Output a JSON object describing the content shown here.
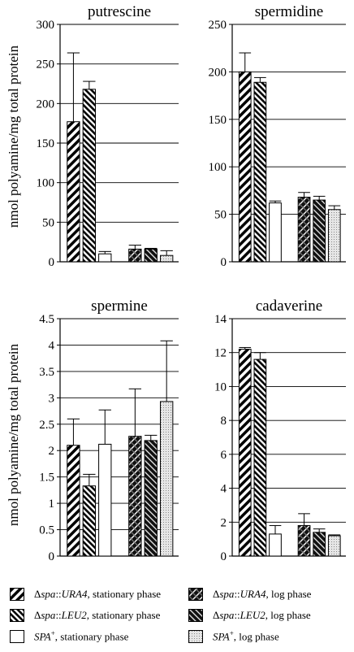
{
  "figure": {
    "ylabel": "nmol polyamine/mg total protein"
  },
  "legend": [
    {
      "prefix": "Δ",
      "italic": "spa",
      "mid": "::",
      "italic2": "URA4",
      "suffix": ", stationary phase",
      "pattern": "hatch-bold"
    },
    {
      "prefix": "Δ",
      "italic": "spa",
      "mid": "::",
      "italic2": "URA4",
      "suffix": ", log phase",
      "pattern": "cross-dark"
    },
    {
      "prefix": "Δ",
      "italic": "spa",
      "mid": "::",
      "italic2": "LEU2",
      "suffix": ", stationary phase",
      "pattern": "hatch-fine"
    },
    {
      "prefix": "Δ",
      "italic": "spa",
      "mid": "::",
      "italic2": "LEU2",
      "suffix": ", log phase",
      "pattern": "cross-dark2"
    },
    {
      "prefix": "",
      "italic": "SPA",
      "mid": "",
      "italic2": "",
      "sup": "+",
      "suffix": ", stationary phase",
      "pattern": "white"
    },
    {
      "prefix": "",
      "italic": "SPA",
      "mid": "",
      "italic2": "",
      "sup": "+",
      "suffix": ", log phase",
      "pattern": "dots"
    }
  ],
  "chart_data": [
    {
      "type": "bar",
      "title": "putrescine",
      "ylim": [
        0,
        300
      ],
      "yticks": [
        0,
        50,
        100,
        150,
        200,
        250,
        300
      ],
      "grid": true,
      "series": [
        {
          "legend_index": 0,
          "value": 177,
          "error": 87
        },
        {
          "legend_index": 2,
          "value": 218,
          "error": 10
        },
        {
          "legend_index": 4,
          "value": 10,
          "error": 3
        },
        {
          "legend_index": 1,
          "value": 16,
          "error": 5
        },
        {
          "legend_index": 3,
          "value": 16,
          "error": 1
        },
        {
          "legend_index": 5,
          "value": 8,
          "error": 6
        }
      ]
    },
    {
      "type": "bar",
      "title": "spermidine",
      "ylim": [
        0,
        250
      ],
      "yticks": [
        0,
        50,
        100,
        150,
        200,
        250
      ],
      "grid": true,
      "series": [
        {
          "legend_index": 0,
          "value": 200,
          "error": 20
        },
        {
          "legend_index": 2,
          "value": 189,
          "error": 5
        },
        {
          "legend_index": 4,
          "value": 62,
          "error": 2
        },
        {
          "legend_index": 1,
          "value": 68,
          "error": 5
        },
        {
          "legend_index": 3,
          "value": 65,
          "error": 4
        },
        {
          "legend_index": 5,
          "value": 55,
          "error": 4
        }
      ]
    },
    {
      "type": "bar",
      "title": "spermine",
      "ylim": [
        0,
        4.5
      ],
      "yticks": [
        0,
        0.5,
        1,
        1.5,
        2,
        2.5,
        3,
        3.5,
        4,
        4.5
      ],
      "grid": true,
      "series": [
        {
          "legend_index": 0,
          "value": 2.1,
          "error": 0.5
        },
        {
          "legend_index": 2,
          "value": 1.33,
          "error": 0.22
        },
        {
          "legend_index": 4,
          "value": 2.12,
          "error": 0.65
        },
        {
          "legend_index": 1,
          "value": 2.27,
          "error": 0.9
        },
        {
          "legend_index": 3,
          "value": 2.19,
          "error": 0.1
        },
        {
          "legend_index": 5,
          "value": 2.93,
          "error": 1.15
        }
      ]
    },
    {
      "type": "bar",
      "title": "cadaverine",
      "ylim": [
        0,
        14
      ],
      "yticks": [
        0,
        2,
        4,
        6,
        8,
        10,
        12,
        14
      ],
      "grid": true,
      "series": [
        {
          "legend_index": 0,
          "value": 12.2,
          "error": 0.1
        },
        {
          "legend_index": 2,
          "value": 11.6,
          "error": 0.4
        },
        {
          "legend_index": 4,
          "value": 1.3,
          "error": 0.5
        },
        {
          "legend_index": 1,
          "value": 1.8,
          "error": 0.7
        },
        {
          "legend_index": 3,
          "value": 1.4,
          "error": 0.2
        },
        {
          "legend_index": 5,
          "value": 1.2,
          "error": 0.05
        }
      ]
    }
  ]
}
